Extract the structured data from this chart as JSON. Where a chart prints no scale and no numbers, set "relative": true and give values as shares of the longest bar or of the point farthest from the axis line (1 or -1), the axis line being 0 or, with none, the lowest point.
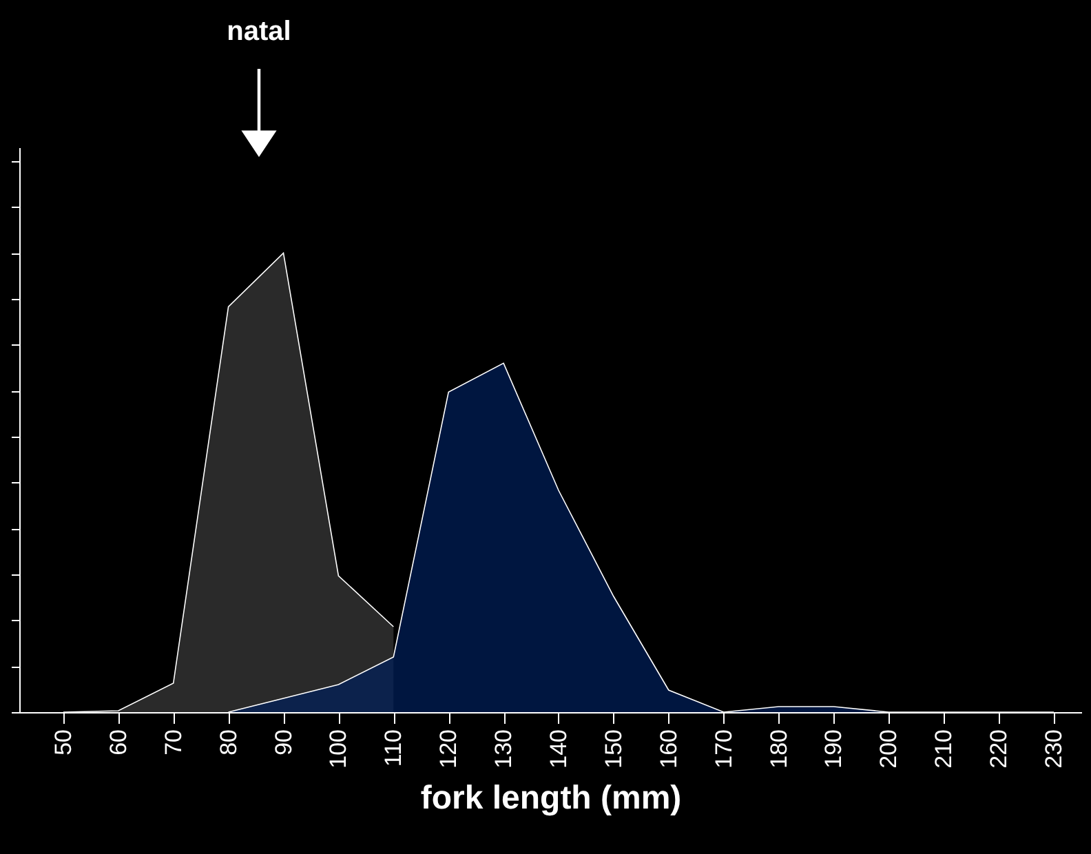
{
  "chart_data": {
    "type": "area",
    "relative": true,
    "xlabel": "fork length (mm)",
    "x": [
      50,
      60,
      70,
      80,
      90,
      100,
      110,
      120,
      130,
      140,
      150,
      160,
      170,
      180,
      190,
      200,
      210,
      220,
      230
    ],
    "xlim": [
      42,
      235
    ],
    "xticks": [
      50,
      60,
      70,
      80,
      90,
      100,
      110,
      120,
      130,
      140,
      150,
      160,
      170,
      180,
      190,
      200,
      210,
      220,
      230
    ],
    "series": [
      {
        "color": "#3c3c3c",
        "values": [
          0,
          0.003,
          0.063,
          0.883,
          1,
          0.297,
          0.186,
          null,
          null,
          null,
          null,
          null,
          null,
          null,
          null,
          null,
          null,
          null,
          null
        ]
      },
      {
        "color": "#00205b",
        "values": [
          null,
          null,
          null,
          0,
          0.03,
          0.06,
          0.12,
          0.697,
          0.76,
          0.483,
          0.252,
          0.048,
          0,
          0.012,
          0.012,
          0,
          0,
          0,
          0
        ]
      }
    ],
    "annotations": [
      "natal"
    ],
    "grid": false
  }
}
